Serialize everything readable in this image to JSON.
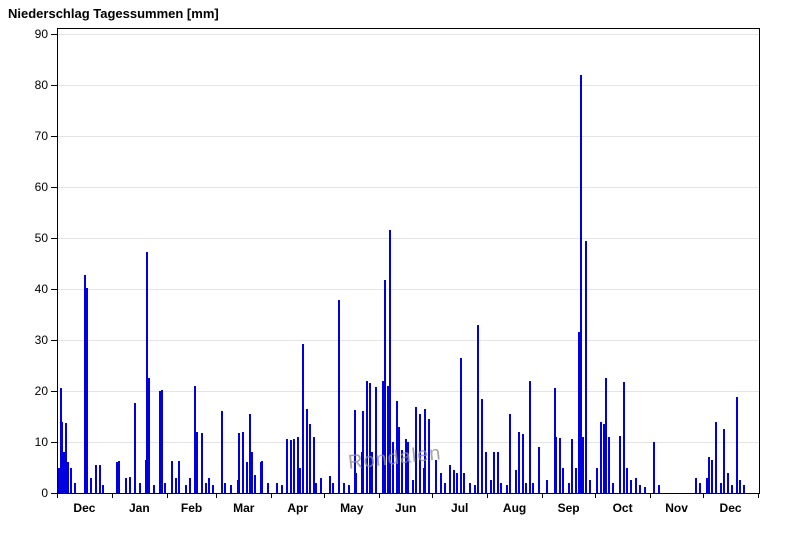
{
  "chart_data": {
    "type": "bar",
    "title": "Niederschlag Tagessummen [mm]",
    "xlabel": "",
    "ylabel": "",
    "unit": "mm",
    "ylim": [
      0,
      91
    ],
    "y_ticks": [
      0,
      10,
      20,
      30,
      40,
      50,
      60,
      70,
      80,
      90
    ],
    "grid": "horizontal",
    "legend": "none",
    "watermark": "Rondalen",
    "colors": {
      "bar": "#0000e0",
      "grid": "#e4e4e4",
      "axis": "#000000",
      "watermark": "#8f8f8f",
      "background": "#ffffff"
    },
    "months": [
      {
        "label": "Dec",
        "days": 31,
        "daily_mm": [
          [
            1,
            5
          ],
          [
            2,
            20.5
          ],
          [
            3,
            14
          ],
          [
            4,
            8
          ],
          [
            5,
            13.8
          ],
          [
            6,
            6
          ],
          [
            8,
            5
          ],
          [
            10,
            2
          ],
          [
            16,
            42.7
          ],
          [
            17,
            40.2
          ],
          [
            19,
            3
          ],
          [
            22,
            5.5
          ],
          [
            24,
            5.5
          ],
          [
            26,
            1.5
          ]
        ]
      },
      {
        "label": "Jan",
        "days": 31,
        "daily_mm": [
          [
            3,
            6
          ],
          [
            4,
            6.2
          ],
          [
            8,
            3
          ],
          [
            10,
            3.2
          ],
          [
            13,
            17.6
          ],
          [
            16,
            2
          ],
          [
            19,
            6.5
          ],
          [
            20,
            47.2
          ],
          [
            21,
            22.6
          ],
          [
            24,
            1.5
          ],
          [
            27,
            20
          ],
          [
            28,
            20.2
          ],
          [
            30,
            2
          ]
        ]
      },
      {
        "label": "Feb",
        "days": 28,
        "daily_mm": [
          [
            3,
            6.2
          ],
          [
            5,
            3
          ],
          [
            7,
            6.3
          ],
          [
            11,
            1.5
          ],
          [
            13,
            3
          ],
          [
            16,
            21
          ],
          [
            17,
            12
          ],
          [
            20,
            11.8
          ],
          [
            22,
            2
          ],
          [
            24,
            3
          ],
          [
            26,
            1.5
          ]
        ]
      },
      {
        "label": "Mar",
        "days": 31,
        "daily_mm": [
          [
            3,
            16
          ],
          [
            5,
            2
          ],
          [
            8,
            1.5
          ],
          [
            12,
            2.5
          ],
          [
            13,
            11.8
          ],
          [
            15,
            12
          ],
          [
            17,
            6
          ],
          [
            19,
            15.5
          ],
          [
            20,
            8
          ],
          [
            22,
            3.5
          ],
          [
            25,
            6
          ],
          [
            26,
            6.2
          ],
          [
            29,
            2
          ]
        ]
      },
      {
        "label": "Apr",
        "days": 30,
        "daily_mm": [
          [
            3,
            2
          ],
          [
            6,
            1.5
          ],
          [
            9,
            10.5
          ],
          [
            11,
            10.3
          ],
          [
            13,
            10.6
          ],
          [
            15,
            11
          ],
          [
            16,
            5
          ],
          [
            18,
            29.2
          ],
          [
            20,
            16.5
          ],
          [
            22,
            13.5
          ],
          [
            24,
            11
          ],
          [
            25,
            2
          ],
          [
            28,
            3
          ]
        ]
      },
      {
        "label": "May",
        "days": 31,
        "daily_mm": [
          [
            3,
            3.3
          ],
          [
            5,
            2
          ],
          [
            8,
            37.8
          ],
          [
            11,
            2
          ],
          [
            14,
            1.5
          ],
          [
            17,
            16.2
          ],
          [
            18,
            4
          ],
          [
            21,
            8
          ],
          [
            22,
            16
          ],
          [
            24,
            22
          ],
          [
            26,
            21.5
          ],
          [
            27,
            8
          ],
          [
            29,
            20.7
          ]
        ]
      },
      {
        "label": "Jun",
        "days": 30,
        "daily_mm": [
          [
            2,
            22
          ],
          [
            3,
            41.8
          ],
          [
            5,
            21
          ],
          [
            6,
            51.5
          ],
          [
            8,
            10
          ],
          [
            10,
            18
          ],
          [
            11,
            13
          ],
          [
            13,
            8.5
          ],
          [
            15,
            10.5
          ],
          [
            16,
            10
          ],
          [
            19,
            2.5
          ],
          [
            21,
            16.8
          ],
          [
            23,
            15.5
          ],
          [
            25,
            5
          ],
          [
            26,
            16.5
          ],
          [
            28,
            14.5
          ]
        ]
      },
      {
        "label": "Jul",
        "days": 31,
        "daily_mm": [
          [
            2,
            6.5
          ],
          [
            5,
            4
          ],
          [
            7,
            2
          ],
          [
            10,
            5.5
          ],
          [
            12,
            4.5
          ],
          [
            14,
            4
          ],
          [
            16,
            26.5
          ],
          [
            18,
            4
          ],
          [
            21,
            2
          ],
          [
            24,
            1.5
          ],
          [
            26,
            33
          ],
          [
            28,
            18.5
          ],
          [
            30,
            8
          ]
        ]
      },
      {
        "label": "Aug",
        "days": 31,
        "daily_mm": [
          [
            2,
            2.5
          ],
          [
            4,
            8
          ],
          [
            6,
            8
          ],
          [
            8,
            2
          ],
          [
            11,
            1.5
          ],
          [
            13,
            15.5
          ],
          [
            16,
            4.5
          ],
          [
            18,
            12
          ],
          [
            20,
            11.5
          ],
          [
            22,
            2
          ],
          [
            24,
            22
          ],
          [
            26,
            2
          ],
          [
            29,
            9
          ]
        ]
      },
      {
        "label": "Sep",
        "days": 30,
        "daily_mm": [
          [
            3,
            2.5
          ],
          [
            7,
            20.5
          ],
          [
            8,
            11
          ],
          [
            10,
            10.7
          ],
          [
            12,
            5
          ],
          [
            15,
            2
          ],
          [
            17,
            10.5
          ],
          [
            19,
            5
          ],
          [
            21,
            31.5
          ],
          [
            22,
            82
          ],
          [
            23,
            11
          ],
          [
            25,
            49.5
          ],
          [
            27,
            2.5
          ]
        ]
      },
      {
        "label": "Oct",
        "days": 31,
        "daily_mm": [
          [
            1,
            5
          ],
          [
            3,
            14
          ],
          [
            5,
            13.5
          ],
          [
            6,
            22.6
          ],
          [
            8,
            11
          ],
          [
            10,
            2
          ],
          [
            14,
            11.2
          ],
          [
            16,
            21.8
          ],
          [
            18,
            5
          ],
          [
            20,
            2.5
          ],
          [
            23,
            3
          ],
          [
            25,
            1.5
          ],
          [
            28,
            1.2
          ]
        ]
      },
      {
        "label": "Nov",
        "days": 30,
        "daily_mm": [
          [
            2,
            10
          ],
          [
            5,
            1.5
          ],
          [
            26,
            3
          ],
          [
            28,
            2
          ]
        ]
      },
      {
        "label": "Dec",
        "days": 31,
        "daily_mm": [
          [
            2,
            3
          ],
          [
            3,
            7
          ],
          [
            5,
            6.5
          ],
          [
            7,
            14
          ],
          [
            10,
            2
          ],
          [
            12,
            12.5
          ],
          [
            14,
            4
          ],
          [
            16,
            1.5
          ],
          [
            19,
            18.8
          ],
          [
            21,
            2.5
          ],
          [
            23,
            1.5
          ]
        ]
      }
    ]
  }
}
